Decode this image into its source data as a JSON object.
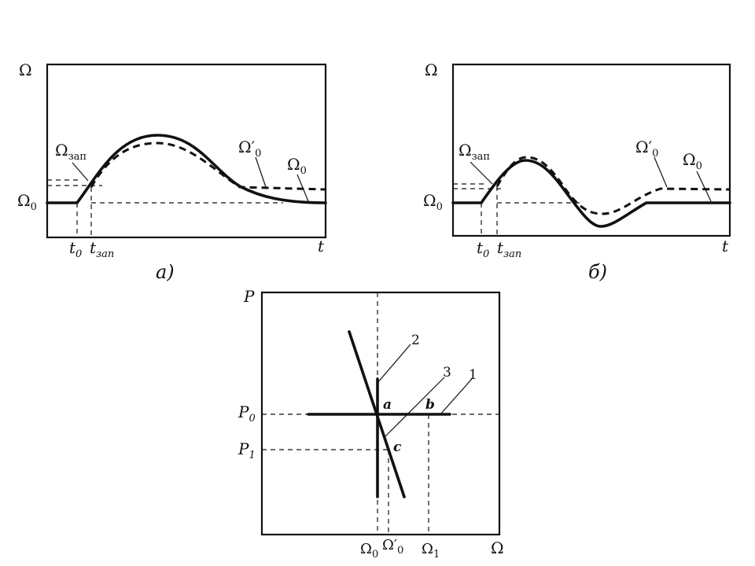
{
  "panel_a": {
    "caption": "а)",
    "y_axis": "Ω",
    "t_axis": "t",
    "omega0": "Ω",
    "omega0_sub": "0",
    "omega_zap": "Ω",
    "omega_zap_sub": "зап",
    "omega0_prime": "Ω′",
    "omega0_prime_sub": "0",
    "omega0_right": "Ω",
    "omega0_right_sub": "0",
    "t0": "t",
    "t0_sub": "0",
    "tzap": "t",
    "tzap_sub": "зап"
  },
  "panel_b": {
    "caption": "б)",
    "y_axis": "Ω",
    "t_axis": "t",
    "omega0": "Ω",
    "omega0_sub": "0",
    "omega_zap": "Ω",
    "omega_zap_sub": "зап",
    "omega0_prime": "Ω′",
    "omega0_prime_sub": "0",
    "omega0_right": "Ω",
    "omega0_right_sub": "0",
    "t0": "t",
    "t0_sub": "0",
    "tzap": "t",
    "tzap_sub": "зап"
  },
  "panel_c": {
    "y_axis": "P",
    "x_axis": "Ω",
    "p0": "P",
    "p0_sub": "0",
    "p1": "P",
    "p1_sub": "1",
    "x_omega0": "Ω",
    "x_omega0_sub": "0",
    "x_omega0_prime": "Ω′",
    "x_omega0_prime_sub": "0",
    "x_omega1": "Ω",
    "x_omega1_sub": "1",
    "point_a": "a",
    "point_b": "b",
    "point_c": "c",
    "line_1": "1",
    "line_2": "2",
    "line_3": "3"
  }
}
